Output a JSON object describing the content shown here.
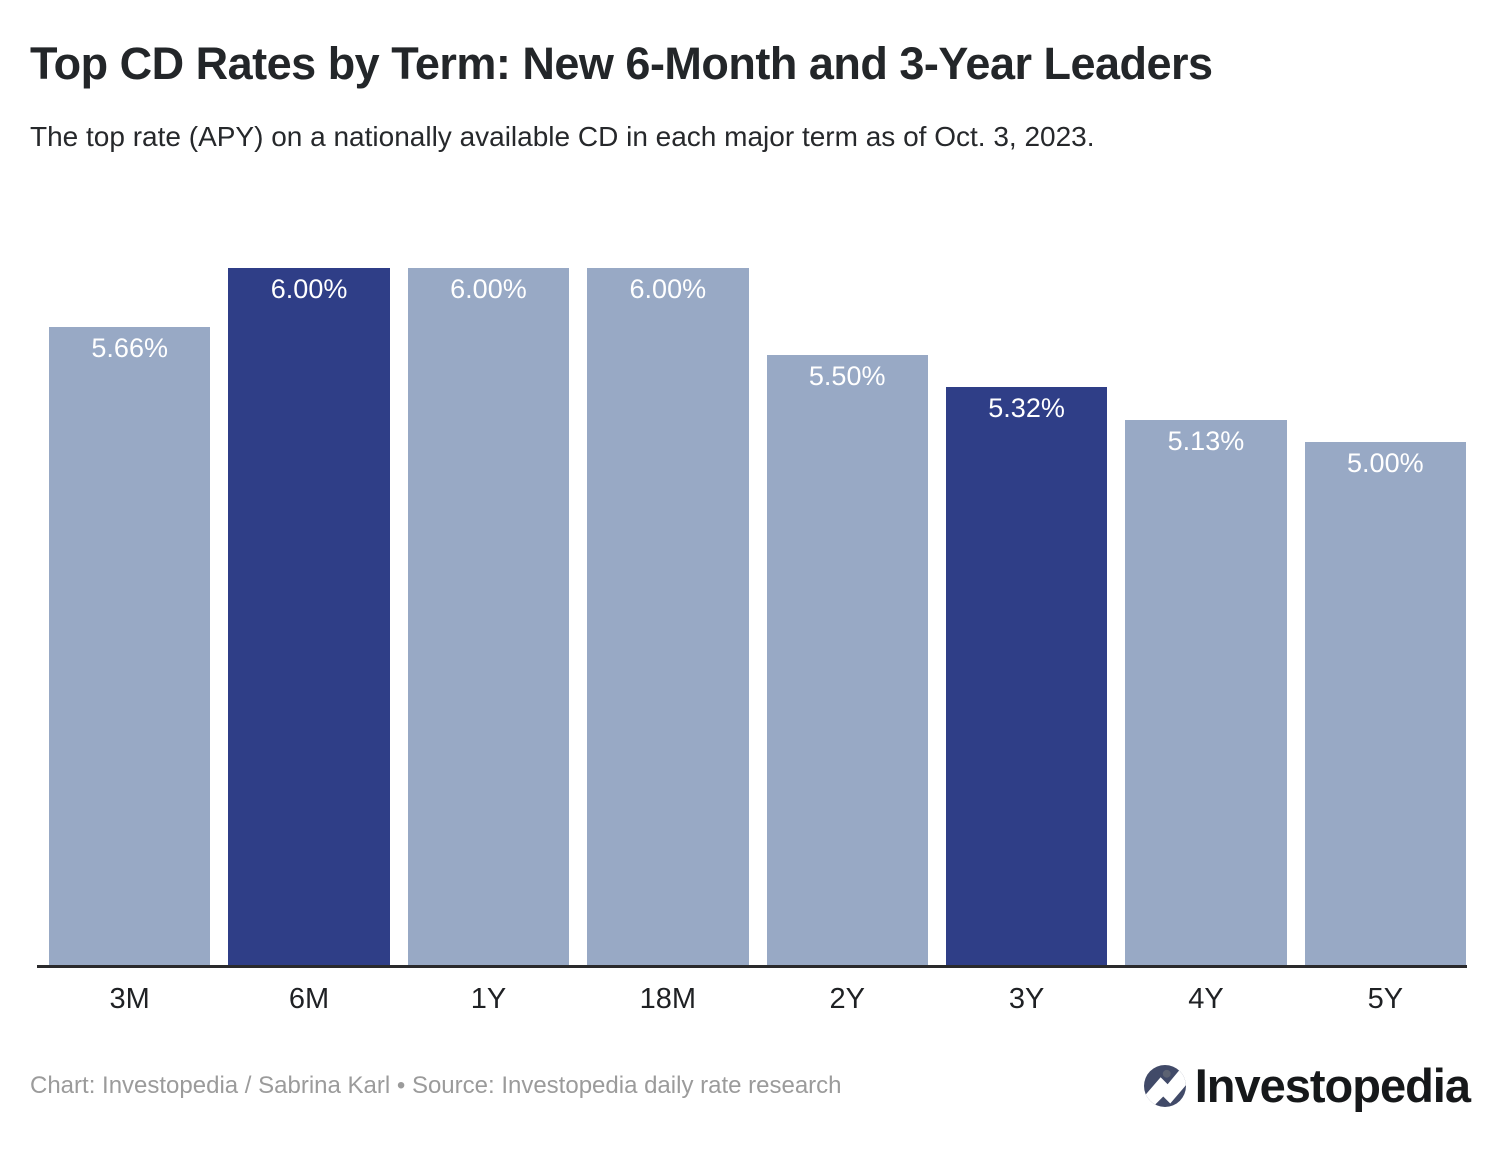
{
  "chart_data": {
    "type": "bar",
    "title": "Top CD Rates by Term: New 6-Month and 3-Year Leaders",
    "subtitle": "The top rate (APY) on a nationally available CD in each major term as of Oct. 3, 2023.",
    "categories": [
      "3M",
      "6M",
      "1Y",
      "18M",
      "2Y",
      "3Y",
      "4Y",
      "5Y"
    ],
    "values": [
      5.66,
      6.0,
      6.0,
      6.0,
      5.5,
      5.32,
      5.13,
      5.0
    ],
    "value_labels": [
      "5.66%",
      "6.00%",
      "6.00%",
      "6.00%",
      "5.50%",
      "5.32%",
      "5.13%",
      "5.00%"
    ],
    "highlighted": [
      false,
      true,
      false,
      false,
      false,
      true,
      false,
      false
    ],
    "ylim": [
      2.0,
      6.0
    ],
    "grid": false,
    "legend": "none",
    "xlabel": "",
    "ylabel": "",
    "colors": {
      "bar_default": "#98a9c5",
      "bar_highlight": "#2f3e87",
      "value_label": "#ffffff",
      "axis_line": "#2a2a2c"
    }
  },
  "footer": {
    "credit": "Chart: Investopedia / Sabrina Karl • Source: Investopedia daily rate research"
  },
  "logo": {
    "text": "Investopedia",
    "icon": "investopedia-circle-i-icon",
    "icon_color": "#414a68"
  }
}
